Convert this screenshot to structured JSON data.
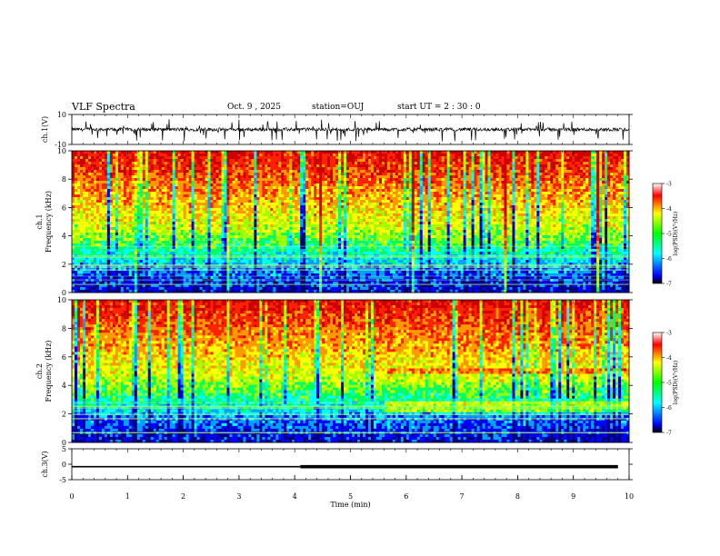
{
  "header": {
    "title": "VLF Spectra",
    "date": "Oct. 9 , 2025",
    "station": "station=OUJ",
    "start": "start  UT =  2 : 30 : 0"
  },
  "chart_data": [
    {
      "type": "line",
      "panel": "ch1-waveform",
      "ylabel": "ch.1(V)",
      "ylim": [
        -10,
        10
      ],
      "yticklabels": [
        "10",
        "-10"
      ],
      "description_of_trace": "noisy broadband waveform near 0 V with frequent spikes to about -8 V"
    },
    {
      "type": "heatmap",
      "panel": "ch1-spectrogram",
      "ylabel": "ch.1\nFrequency (kHz)",
      "ylim": [
        0,
        10
      ],
      "yticklabels": [
        "0",
        "2",
        "4",
        "6",
        "8",
        "10"
      ],
      "xlim": [
        0,
        10
      ],
      "colorbar": {
        "label": "log(PSD)(V²/Hz)",
        "range": [
          -7,
          -3
        ],
        "ticklabels": [
          "-3",
          "-4",
          "-5",
          "-6",
          "-7"
        ]
      }
    },
    {
      "type": "heatmap",
      "panel": "ch2-spectrogram",
      "ylabel": "ch.2\nFrequency (kHz)",
      "ylim": [
        0,
        10
      ],
      "yticklabels": [
        "0",
        "2",
        "4",
        "6",
        "8",
        "10"
      ],
      "xlim": [
        0,
        10
      ],
      "colorbar": {
        "label": "log(PSD)(V²/Hz)",
        "range": [
          -7,
          -3
        ],
        "ticklabels": [
          "-3",
          "-4",
          "-5",
          "-6",
          "-7"
        ]
      }
    },
    {
      "type": "line",
      "panel": "ch3-waveform",
      "ylabel": "ch.3(V)",
      "ylim": [
        -5,
        5
      ],
      "yticklabels": [
        "5",
        "0",
        "-5"
      ],
      "x": [
        0,
        4.1,
        4.1,
        9.8
      ],
      "y": [
        -0.8,
        -0.8,
        -0.8,
        -0.8
      ]
    }
  ],
  "xaxis": {
    "label": "Time (min)",
    "range": [
      0,
      10
    ],
    "ticklabels": [
      "0",
      "1",
      "2",
      "3",
      "4",
      "5",
      "6",
      "7",
      "8",
      "9",
      "10"
    ]
  },
  "colors": {
    "spectrum": [
      "#00007a",
      "#0000ff",
      "#00a0ff",
      "#00ffff",
      "#00ff60",
      "#a0ff00",
      "#ffff00",
      "#ff9900",
      "#ff2200",
      "#cc0000"
    ]
  }
}
